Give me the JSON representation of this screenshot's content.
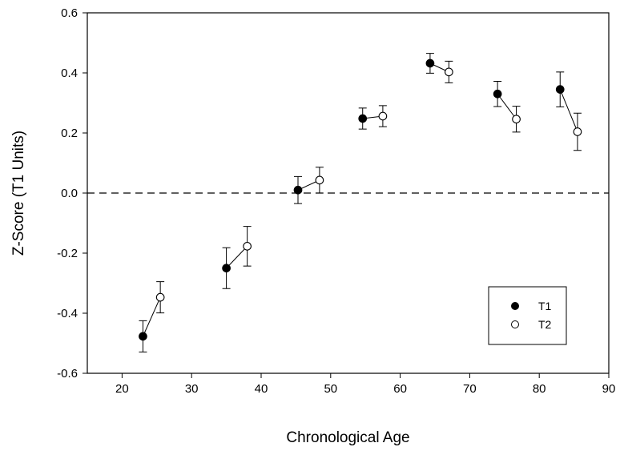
{
  "chart_data": {
    "type": "scatter",
    "title": "",
    "xlabel": "Chronological Age",
    "ylabel": "Z-Score (T1 Units)",
    "xlim": [
      15,
      90
    ],
    "ylim": [
      -0.6,
      0.6
    ],
    "xticks": [
      20,
      30,
      40,
      50,
      60,
      70,
      80,
      90
    ],
    "yticks": [
      -0.6,
      -0.4,
      -0.2,
      0.0,
      0.2,
      0.4,
      0.6
    ],
    "xtick_labels": [
      "20",
      "30",
      "40",
      "50",
      "60",
      "70",
      "80",
      "90"
    ],
    "ytick_labels": [
      "-0.6",
      "-0.4",
      "-0.2",
      "0.0",
      "0.2",
      "0.4",
      "0.6"
    ],
    "reference_line": {
      "y": 0.0,
      "style": "dashed"
    },
    "grid": false,
    "legend_position": "bottom-right",
    "series": [
      {
        "name": "T1",
        "marker": "filled-circle",
        "points": [
          {
            "x": 23.0,
            "y": -0.477,
            "err": 0.052
          },
          {
            "x": 35.0,
            "y": -0.25,
            "err": 0.068
          },
          {
            "x": 45.3,
            "y": 0.01,
            "err": 0.045
          },
          {
            "x": 54.6,
            "y": 0.248,
            "err": 0.035
          },
          {
            "x": 64.3,
            "y": 0.432,
            "err": 0.033
          },
          {
            "x": 74.0,
            "y": 0.33,
            "err": 0.042
          },
          {
            "x": 83.0,
            "y": 0.345,
            "err": 0.058
          }
        ]
      },
      {
        "name": "T2",
        "marker": "open-circle",
        "points": [
          {
            "x": 25.5,
            "y": -0.347,
            "err": 0.052
          },
          {
            "x": 38.0,
            "y": -0.177,
            "err": 0.066
          },
          {
            "x": 48.4,
            "y": 0.043,
            "err": 0.043
          },
          {
            "x": 57.5,
            "y": 0.256,
            "err": 0.035
          },
          {
            "x": 67.0,
            "y": 0.403,
            "err": 0.036
          },
          {
            "x": 76.7,
            "y": 0.246,
            "err": 0.043
          },
          {
            "x": 85.5,
            "y": 0.204,
            "err": 0.062
          }
        ]
      }
    ]
  }
}
